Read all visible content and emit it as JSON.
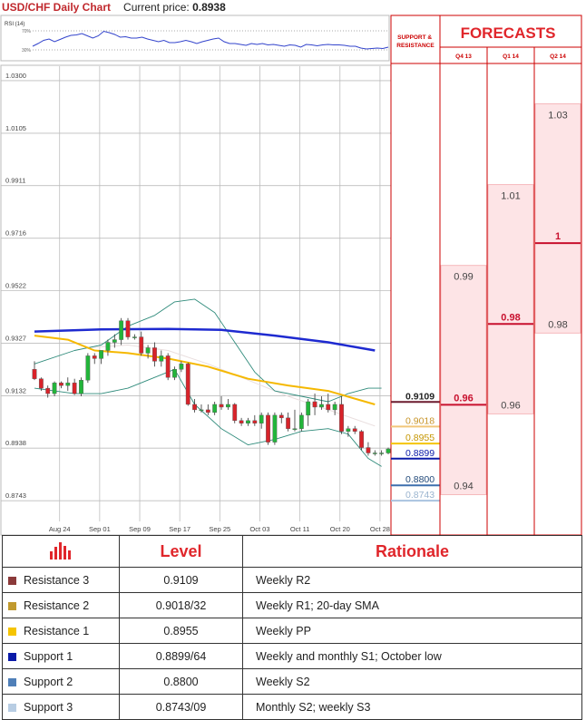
{
  "header": {
    "title": "USD/CHF Daily Chart",
    "current_price_label": "Current price:",
    "current_price": "0.8938"
  },
  "rsi": {
    "label": "RSI (14)",
    "upper_tick": "70%",
    "lower_tick": "30%",
    "values": [
      0.32,
      0.38,
      0.45,
      0.48,
      0.42,
      0.47,
      0.52,
      0.56,
      0.57,
      0.6,
      0.55,
      0.5,
      0.55,
      0.65,
      0.62,
      0.58,
      0.52,
      0.53,
      0.5,
      0.5,
      0.52,
      0.48,
      0.45,
      0.42,
      0.45,
      0.4,
      0.4,
      0.42,
      0.45,
      0.42,
      0.38,
      0.42,
      0.45,
      0.48,
      0.5,
      0.42,
      0.38,
      0.38,
      0.36,
      0.34,
      0.38,
      0.36,
      0.38,
      0.35,
      0.36,
      0.34,
      0.32,
      0.35,
      0.34,
      0.3,
      0.36,
      0.35,
      0.33,
      0.35,
      0.36,
      0.35,
      0.35,
      0.34,
      0.32,
      0.32,
      0.28,
      0.26,
      0.27,
      0.28,
      0.27,
      0.3
    ]
  },
  "chart_data": {
    "type": "candlestick",
    "title": "USD/CHF Daily Chart",
    "y_ticks": [
      "1.0300",
      "1.0105",
      "0.9911",
      "0.9716",
      "0.9522",
      "0.9327",
      "0.9132",
      "0.8938",
      "0.8743"
    ],
    "ylim": [
      0.871,
      1.033
    ],
    "x_ticks": [
      {
        "label": "Aug 24",
        "i": 2
      },
      {
        "label": "Sep 01",
        "i": 8
      },
      {
        "label": "Sep 09",
        "i": 14
      },
      {
        "label": "Sep 17",
        "i": 20
      },
      {
        "label": "Sep 25",
        "i": 26
      },
      {
        "label": "Oct 03",
        "i": 32
      },
      {
        "label": "Oct 11",
        "i": 38
      },
      {
        "label": "Oct 20",
        "i": 44
      },
      {
        "label": "Oct 28",
        "i": 50
      }
    ],
    "candles": [
      [
        0.923,
        0.926,
        0.919,
        0.9195
      ],
      [
        0.9195,
        0.92,
        0.915,
        0.916
      ],
      [
        0.916,
        0.917,
        0.9125,
        0.914
      ],
      [
        0.914,
        0.9185,
        0.913,
        0.918
      ],
      [
        0.918,
        0.9185,
        0.916,
        0.917
      ],
      [
        0.917,
        0.92,
        0.915,
        0.918
      ],
      [
        0.918,
        0.9195,
        0.9135,
        0.914
      ],
      [
        0.914,
        0.92,
        0.913,
        0.919
      ],
      [
        0.919,
        0.929,
        0.918,
        0.928
      ],
      [
        0.928,
        0.929,
        0.925,
        0.927
      ],
      [
        0.927,
        0.93,
        0.925,
        0.93
      ],
      [
        0.93,
        0.934,
        0.928,
        0.933
      ],
      [
        0.933,
        0.936,
        0.931,
        0.934
      ],
      [
        0.934,
        0.942,
        0.932,
        0.941
      ],
      [
        0.941,
        0.942,
        0.934,
        0.935
      ],
      [
        0.935,
        0.936,
        0.934,
        0.935
      ],
      [
        0.935,
        0.937,
        0.928,
        0.929
      ],
      [
        0.929,
        0.932,
        0.927,
        0.931
      ],
      [
        0.931,
        0.933,
        0.924,
        0.926
      ],
      [
        0.926,
        0.93,
        0.924,
        0.928
      ],
      [
        0.928,
        0.929,
        0.919,
        0.92
      ],
      [
        0.92,
        0.924,
        0.919,
        0.923
      ],
      [
        0.923,
        0.926,
        0.922,
        0.925
      ],
      [
        0.925,
        0.9255,
        0.9095,
        0.91
      ],
      [
        0.91,
        0.912,
        0.907,
        0.908
      ],
      [
        0.908,
        0.91,
        0.907,
        0.908
      ],
      [
        0.908,
        0.91,
        0.906,
        0.907
      ],
      [
        0.907,
        0.911,
        0.906,
        0.91
      ],
      [
        0.91,
        0.913,
        0.908,
        0.909
      ],
      [
        0.909,
        0.912,
        0.908,
        0.91
      ],
      [
        0.91,
        0.9105,
        0.903,
        0.904
      ],
      [
        0.904,
        0.905,
        0.902,
        0.903
      ],
      [
        0.903,
        0.905,
        0.902,
        0.904
      ],
      [
        0.904,
        0.906,
        0.902,
        0.903
      ],
      [
        0.903,
        0.907,
        0.901,
        0.906
      ],
      [
        0.906,
        0.907,
        0.895,
        0.896
      ],
      [
        0.896,
        0.907,
        0.895,
        0.906
      ],
      [
        0.906,
        0.907,
        0.903,
        0.905
      ],
      [
        0.905,
        0.907,
        0.9,
        0.901
      ],
      [
        0.901,
        0.908,
        0.9,
        0.901
      ],
      [
        0.901,
        0.907,
        0.9,
        0.906
      ],
      [
        0.906,
        0.912,
        0.902,
        0.911
      ],
      [
        0.911,
        0.914,
        0.906,
        0.909
      ],
      [
        0.909,
        0.913,
        0.908,
        0.91
      ],
      [
        0.91,
        0.914,
        0.907,
        0.908
      ],
      [
        0.908,
        0.911,
        0.906,
        0.91
      ],
      [
        0.91,
        0.913,
        0.899,
        0.9
      ],
      [
        0.9,
        0.902,
        0.898,
        0.901
      ],
      [
        0.901,
        0.902,
        0.899,
        0.9
      ],
      [
        0.9,
        0.9005,
        0.893,
        0.894
      ],
      [
        0.894,
        0.896,
        0.891,
        0.892
      ],
      [
        0.892,
        0.893,
        0.891,
        0.892
      ],
      [
        0.892,
        0.893,
        0.891,
        0.892
      ],
      [
        0.892,
        0.894,
        0.8915,
        0.8935
      ]
    ],
    "ma200": [
      [
        0,
        0.937
      ],
      [
        10,
        0.9378
      ],
      [
        20,
        0.938
      ],
      [
        28,
        0.9376
      ],
      [
        36,
        0.9355
      ],
      [
        44,
        0.933
      ],
      [
        51,
        0.93
      ]
    ],
    "ma_yellow": [
      [
        0,
        0.9355
      ],
      [
        5,
        0.934
      ],
      [
        9,
        0.93
      ],
      [
        14,
        0.929
      ],
      [
        20,
        0.927
      ],
      [
        26,
        0.924
      ],
      [
        32,
        0.9195
      ],
      [
        38,
        0.917
      ],
      [
        44,
        0.915
      ],
      [
        51,
        0.91
      ]
    ],
    "ma_faint": [
      [
        8,
        0.931
      ],
      [
        14,
        0.932
      ],
      [
        20,
        0.93
      ],
      [
        26,
        0.925
      ],
      [
        32,
        0.919
      ],
      [
        38,
        0.913
      ],
      [
        44,
        0.908
      ],
      [
        51,
        0.902
      ]
    ],
    "bb_upper": [
      [
        0,
        0.925
      ],
      [
        6,
        0.93
      ],
      [
        10,
        0.932
      ],
      [
        14,
        0.939
      ],
      [
        18,
        0.943
      ],
      [
        21,
        0.948
      ],
      [
        24,
        0.949
      ],
      [
        27,
        0.944
      ],
      [
        30,
        0.933
      ],
      [
        33,
        0.922
      ],
      [
        36,
        0.915
      ],
      [
        40,
        0.913
      ],
      [
        44,
        0.911
      ],
      [
        47,
        0.914
      ],
      [
        50,
        0.916
      ],
      [
        52,
        0.916
      ]
    ],
    "bb_lower": [
      [
        0,
        0.916
      ],
      [
        6,
        0.914
      ],
      [
        10,
        0.914
      ],
      [
        14,
        0.916
      ],
      [
        18,
        0.92
      ],
      [
        21,
        0.923
      ],
      [
        24,
        0.91
      ],
      [
        28,
        0.901
      ],
      [
        32,
        0.895
      ],
      [
        36,
        0.897
      ],
      [
        40,
        0.9
      ],
      [
        44,
        0.901
      ],
      [
        47,
        0.899
      ],
      [
        50,
        0.89
      ],
      [
        52,
        0.887
      ]
    ]
  },
  "levels_axis": {
    "ylim": [
      0.871,
      1.033
    ],
    "markers": [
      {
        "value": 0.9109,
        "label": "0.9109",
        "color": "#6b1b2e",
        "text_color": "#222222",
        "bold": true
      },
      {
        "value": 0.9018,
        "label": "0.9018",
        "color": "#f2c77a",
        "text_color": "#c8952a",
        "bold": false
      },
      {
        "value": 0.8955,
        "label": "0.8955",
        "color": "#f5c400",
        "text_color": "#c59600",
        "bold": false
      },
      {
        "value": 0.8899,
        "label": "0.8899",
        "color": "#0a1aa8",
        "text_color": "#0a1aa8",
        "bold": false
      },
      {
        "value": 0.88,
        "label": "0.8800",
        "color": "#3d6fae",
        "text_color": "#224a7a",
        "bold": false
      },
      {
        "value": 0.8743,
        "label": "0.8743",
        "color": "#a9c3df",
        "text_color": "#9ab4cf",
        "bold": false
      }
    ]
  },
  "forecasts": {
    "support_resistance_label": "SUPPORT & RESISTANCE",
    "title": "FORECASTS",
    "columns": [
      {
        "label": "Q4 13",
        "low": 0.94,
        "median": 0.96,
        "high": 0.99,
        "labels": {
          "high": "0.99",
          "median": "0.96",
          "low": "0.94"
        }
      },
      {
        "label": "Q1 14",
        "low": 0.96,
        "median": 0.98,
        "high": 1.01,
        "labels": {
          "high": "1.01",
          "median": "0.98",
          "low": "0.96"
        }
      },
      {
        "label": "Q2 14",
        "low": 0.98,
        "median": 1.0,
        "high": 1.03,
        "labels": {
          "high": "1.03",
          "median": "1",
          "low": "0.98"
        }
      }
    ]
  },
  "levels_table": {
    "level_header": "Level",
    "rationale_header": "Rationale",
    "rows": [
      {
        "name": "Resistance 3",
        "level": "0.9109",
        "rationale": "Weekly R2",
        "color": "#8b3a3a"
      },
      {
        "name": "Resistance 2",
        "level": "0.9018/32",
        "rationale": "Weekly R1; 20-day SMA",
        "color": "#c19a2e"
      },
      {
        "name": "Resistance 1",
        "level": "0.8955",
        "rationale": "Weekly PP",
        "color": "#f5c400"
      },
      {
        "name": "Support 1",
        "level": "0.8899/64",
        "rationale": "Weekly and monthly S1; October low",
        "color": "#0a1aa8"
      },
      {
        "name": "Support 2",
        "level": "0.8800",
        "rationale": "Weekly S2",
        "color": "#4f7fb8"
      },
      {
        "name": "Support 3",
        "level": "0.8743/09",
        "rationale": "Monthly S2; weekly S3",
        "color": "#b8cde3"
      }
    ]
  }
}
